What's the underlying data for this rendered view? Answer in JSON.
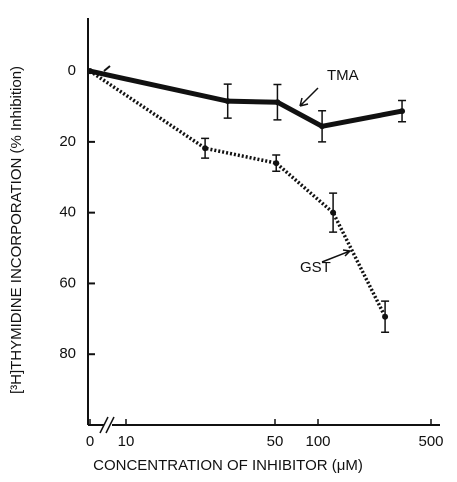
{
  "chart_data": {
    "type": "line",
    "xlabel": "CONCENTRATION OF INHIBITOR (μM)",
    "ylabel": "[³H]THYMIDINE INCORPORATION (% Inhibition)",
    "xscale": "log",
    "axis_break": true,
    "xlim": [
      0,
      570
    ],
    "xticks": [
      0,
      10,
      50,
      100,
      500
    ],
    "ylim": [
      -15,
      100
    ],
    "yticks": [
      0,
      20,
      40,
      60,
      80
    ],
    "y_inverted": true,
    "series": [
      {
        "name": "TMA",
        "color": "#111111",
        "style": "solid",
        "x": [
          0,
          30,
          52,
          106,
          331
        ],
        "values": [
          0,
          8.5,
          8.8,
          15.6,
          11.3
        ],
        "errors": [
          null,
          4.8,
          5,
          4.4,
          3
        ]
      },
      {
        "name": "GST",
        "color": "#111111",
        "style": "dotted",
        "x": [
          0,
          23.5,
          51,
          124,
          260
        ],
        "values": [
          0,
          21.8,
          26,
          40,
          69.4
        ],
        "errors": [
          null,
          2.8,
          2.3,
          5.5,
          4.4
        ]
      }
    ]
  }
}
